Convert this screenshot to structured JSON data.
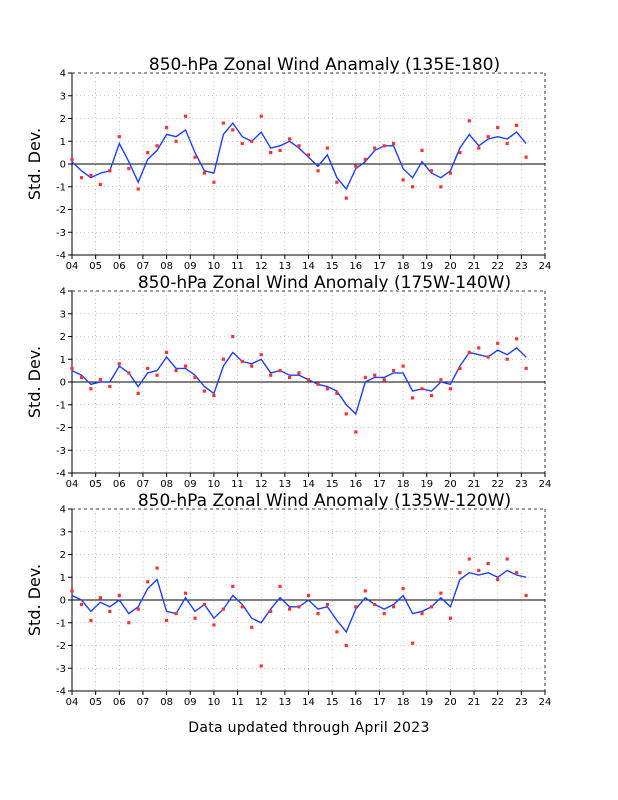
{
  "footer": "Data updated through April 2023",
  "colors": {
    "points": "#ff3333",
    "line": "#1f3fff",
    "grid": "#9a9a9a",
    "axis": "#000000"
  },
  "chart_data": [
    {
      "type": "scatter",
      "title": "850-hPa Zonal Wind Anamaly (135E-180)",
      "ylabel": "Std. Dev.",
      "xlabel": "",
      "ylim": [
        -4,
        4
      ],
      "xlim": [
        4,
        24
      ],
      "x_tick_labels": [
        "04",
        "05",
        "06",
        "07",
        "08",
        "09",
        "10",
        "11",
        "12",
        "13",
        "14",
        "15",
        "16",
        "17",
        "18",
        "19",
        "20",
        "21",
        "22",
        "23",
        "24"
      ],
      "y_tick_labels": [
        "-4",
        "-3",
        "-2",
        "-1",
        "0",
        "1",
        "2",
        "3",
        "4"
      ],
      "grid": true,
      "zero_line": true,
      "series": [
        {
          "kind": "points",
          "x": [
            4.0,
            4.4,
            4.8,
            5.2,
            5.6,
            6.0,
            6.4,
            6.8,
            7.2,
            7.6,
            8.0,
            8.4,
            8.8,
            9.2,
            9.6,
            10.0,
            10.4,
            10.8,
            11.2,
            11.6,
            12.0,
            12.4,
            12.8,
            13.2,
            13.6,
            14.0,
            14.4,
            14.8,
            15.2,
            15.6,
            16.0,
            16.4,
            16.8,
            17.2,
            17.6,
            18.0,
            18.4,
            18.8,
            19.2,
            19.6,
            20.0,
            20.4,
            20.8,
            21.2,
            21.6,
            22.0,
            22.4,
            22.8,
            23.2
          ],
          "y": [
            0.2,
            -0.6,
            -0.5,
            -0.9,
            -0.3,
            1.2,
            -0.2,
            -1.1,
            0.5,
            0.8,
            1.6,
            1.0,
            2.1,
            0.3,
            -0.4,
            -0.8,
            1.8,
            1.5,
            0.9,
            1.0,
            2.1,
            0.5,
            0.6,
            1.1,
            0.8,
            0.4,
            -0.3,
            0.7,
            -0.8,
            -1.5,
            -0.1,
            0.2,
            0.7,
            0.8,
            0.9,
            -0.7,
            -1.0,
            0.6,
            -0.3,
            -1.0,
            -0.4,
            0.5,
            1.9,
            0.7,
            1.2,
            1.6,
            0.9,
            1.7,
            0.3
          ]
        },
        {
          "kind": "line",
          "x": [
            4.0,
            4.4,
            4.8,
            5.2,
            5.6,
            6.0,
            6.4,
            6.8,
            7.2,
            7.6,
            8.0,
            8.4,
            8.8,
            9.2,
            9.6,
            10.0,
            10.4,
            10.8,
            11.2,
            11.6,
            12.0,
            12.4,
            12.8,
            13.2,
            13.6,
            14.0,
            14.4,
            14.8,
            15.2,
            15.6,
            16.0,
            16.4,
            16.8,
            17.2,
            17.6,
            18.0,
            18.4,
            18.8,
            19.2,
            19.6,
            20.0,
            20.4,
            20.8,
            21.2,
            21.6,
            22.0,
            22.4,
            22.8,
            23.2
          ],
          "y": [
            0.1,
            -0.3,
            -0.6,
            -0.4,
            -0.3,
            0.9,
            0.1,
            -0.8,
            0.2,
            0.6,
            1.3,
            1.2,
            1.5,
            0.5,
            -0.3,
            -0.4,
            1.3,
            1.8,
            1.2,
            1.0,
            1.4,
            0.7,
            0.8,
            1.0,
            0.7,
            0.3,
            -0.1,
            0.4,
            -0.6,
            -1.1,
            -0.2,
            0.1,
            0.6,
            0.8,
            0.8,
            -0.2,
            -0.6,
            0.1,
            -0.4,
            -0.6,
            -0.3,
            0.7,
            1.3,
            0.8,
            1.1,
            1.2,
            1.1,
            1.4,
            0.9
          ]
        }
      ]
    },
    {
      "type": "scatter",
      "title": "850-hPa Zonal Wind Anomaly (175W-140W)",
      "ylabel": "Std. Dev.",
      "xlabel": "",
      "ylim": [
        -4,
        4
      ],
      "xlim": [
        4,
        24
      ],
      "x_tick_labels": [
        "04",
        "05",
        "06",
        "07",
        "08",
        "09",
        "10",
        "11",
        "12",
        "13",
        "14",
        "15",
        "16",
        "17",
        "18",
        "19",
        "20",
        "21",
        "22",
        "23",
        "24"
      ],
      "y_tick_labels": [
        "-4",
        "-3",
        "-2",
        "-1",
        "0",
        "1",
        "2",
        "3",
        "4"
      ],
      "grid": true,
      "zero_line": true,
      "series": [
        {
          "kind": "points",
          "x": [
            4.0,
            4.4,
            4.8,
            5.2,
            5.6,
            6.0,
            6.4,
            6.8,
            7.2,
            7.6,
            8.0,
            8.4,
            8.8,
            9.2,
            9.6,
            10.0,
            10.4,
            10.8,
            11.2,
            11.6,
            12.0,
            12.4,
            12.8,
            13.2,
            13.6,
            14.0,
            14.4,
            14.8,
            15.2,
            15.6,
            16.0,
            16.4,
            16.8,
            17.2,
            17.6,
            18.0,
            18.4,
            18.8,
            19.2,
            19.6,
            20.0,
            20.4,
            20.8,
            21.2,
            21.6,
            22.0,
            22.4,
            22.8,
            23.2
          ],
          "y": [
            0.6,
            0.2,
            -0.3,
            0.1,
            -0.2,
            0.8,
            0.4,
            -0.5,
            0.6,
            0.3,
            1.3,
            0.5,
            0.7,
            0.2,
            -0.4,
            -0.6,
            1.0,
            2.0,
            0.9,
            0.7,
            1.2,
            0.3,
            0.5,
            0.2,
            0.4,
            0.1,
            -0.1,
            -0.3,
            -0.5,
            -1.4,
            -2.2,
            0.2,
            0.3,
            0.1,
            0.5,
            0.7,
            -0.7,
            -0.3,
            -0.6,
            0.1,
            -0.3,
            0.6,
            1.3,
            1.5,
            1.1,
            1.7,
            1.0,
            1.9,
            0.6
          ]
        },
        {
          "kind": "line",
          "x": [
            4.0,
            4.4,
            4.8,
            5.2,
            5.6,
            6.0,
            6.4,
            6.8,
            7.2,
            7.6,
            8.0,
            8.4,
            8.8,
            9.2,
            9.6,
            10.0,
            10.4,
            10.8,
            11.2,
            11.6,
            12.0,
            12.4,
            12.8,
            13.2,
            13.6,
            14.0,
            14.4,
            14.8,
            15.2,
            15.6,
            16.0,
            16.4,
            16.8,
            17.2,
            17.6,
            18.0,
            18.4,
            18.8,
            19.2,
            19.6,
            20.0,
            20.4,
            20.8,
            21.2,
            21.6,
            22.0,
            22.4,
            22.8,
            23.2
          ],
          "y": [
            0.5,
            0.3,
            -0.1,
            0.0,
            0.0,
            0.7,
            0.4,
            -0.2,
            0.4,
            0.5,
            1.1,
            0.6,
            0.6,
            0.3,
            -0.2,
            -0.5,
            0.7,
            1.3,
            0.9,
            0.8,
            1.0,
            0.4,
            0.5,
            0.3,
            0.3,
            0.1,
            -0.1,
            -0.2,
            -0.4,
            -1.0,
            -1.4,
            0.0,
            0.2,
            0.2,
            0.4,
            0.4,
            -0.4,
            -0.3,
            -0.4,
            0.0,
            -0.1,
            0.7,
            1.3,
            1.2,
            1.1,
            1.4,
            1.2,
            1.5,
            1.1
          ]
        }
      ]
    },
    {
      "type": "scatter",
      "title": "850-hPa Zonal Wind Anomaly (135W-120W)",
      "ylabel": "Std. Dev.",
      "xlabel": "",
      "ylim": [
        -4,
        4
      ],
      "xlim": [
        4,
        24
      ],
      "x_tick_labels": [
        "04",
        "05",
        "06",
        "07",
        "08",
        "09",
        "10",
        "11",
        "12",
        "13",
        "14",
        "15",
        "16",
        "17",
        "18",
        "19",
        "20",
        "21",
        "22",
        "23",
        "24"
      ],
      "y_tick_labels": [
        "-4",
        "-3",
        "-2",
        "-1",
        "0",
        "1",
        "2",
        "3",
        "4"
      ],
      "grid": true,
      "zero_line": true,
      "series": [
        {
          "kind": "points",
          "x": [
            4.0,
            4.4,
            4.8,
            5.2,
            5.6,
            6.0,
            6.4,
            6.8,
            7.2,
            7.6,
            8.0,
            8.4,
            8.8,
            9.2,
            9.6,
            10.0,
            10.4,
            10.8,
            11.2,
            11.6,
            12.0,
            12.4,
            12.8,
            13.2,
            13.6,
            14.0,
            14.4,
            14.8,
            15.2,
            15.6,
            16.0,
            16.4,
            16.8,
            17.2,
            17.6,
            18.0,
            18.4,
            18.8,
            19.2,
            19.6,
            20.0,
            20.4,
            20.8,
            21.2,
            21.6,
            22.0,
            22.4,
            22.8,
            23.2
          ],
          "y": [
            0.4,
            -0.2,
            -0.9,
            0.1,
            -0.5,
            0.2,
            -1.0,
            -0.4,
            0.8,
            1.4,
            -0.9,
            -0.6,
            0.3,
            -0.8,
            -0.2,
            -1.1,
            -0.4,
            0.6,
            -0.3,
            -1.2,
            -2.9,
            -0.5,
            0.6,
            -0.4,
            -0.3,
            0.2,
            -0.6,
            -0.2,
            -1.4,
            -2.0,
            -0.3,
            0.4,
            -0.2,
            -0.6,
            -0.3,
            0.5,
            -1.9,
            -0.6,
            -0.3,
            0.3,
            -0.8,
            1.2,
            1.8,
            1.3,
            1.6,
            0.9,
            1.8,
            1.2,
            0.2
          ]
        },
        {
          "kind": "line",
          "x": [
            4.0,
            4.4,
            4.8,
            5.2,
            5.6,
            6.0,
            6.4,
            6.8,
            7.2,
            7.6,
            8.0,
            8.4,
            8.8,
            9.2,
            9.6,
            10.0,
            10.4,
            10.8,
            11.2,
            11.6,
            12.0,
            12.4,
            12.8,
            13.2,
            13.6,
            14.0,
            14.4,
            14.8,
            15.2,
            15.6,
            16.0,
            16.4,
            16.8,
            17.2,
            17.6,
            18.0,
            18.4,
            18.8,
            19.2,
            19.6,
            20.0,
            20.4,
            20.8,
            21.2,
            21.6,
            22.0,
            22.4,
            22.8,
            23.2
          ],
          "y": [
            0.2,
            0.0,
            -0.5,
            -0.1,
            -0.3,
            0.0,
            -0.6,
            -0.3,
            0.5,
            0.9,
            -0.5,
            -0.6,
            0.1,
            -0.5,
            -0.2,
            -0.8,
            -0.4,
            0.2,
            -0.2,
            -0.8,
            -1.0,
            -0.4,
            0.1,
            -0.3,
            -0.3,
            0.0,
            -0.4,
            -0.3,
            -0.9,
            -1.4,
            -0.4,
            0.1,
            -0.2,
            -0.4,
            -0.2,
            0.2,
            -0.6,
            -0.5,
            -0.3,
            0.1,
            -0.3,
            0.9,
            1.2,
            1.1,
            1.2,
            1.0,
            1.3,
            1.1,
            1.0
          ]
        }
      ]
    }
  ]
}
